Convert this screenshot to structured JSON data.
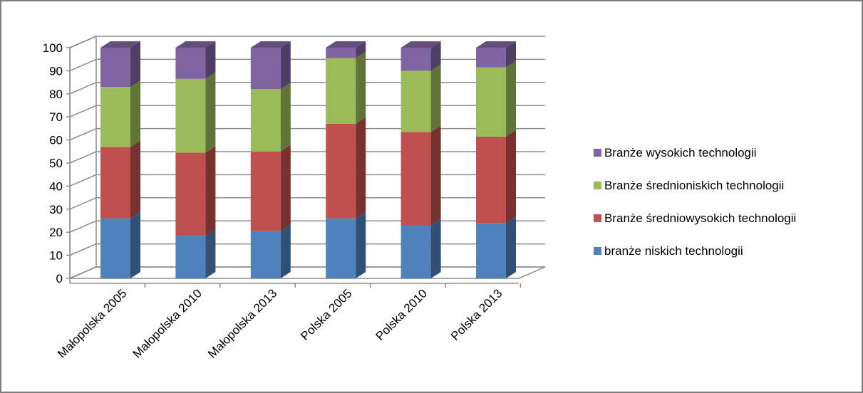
{
  "chart_data": {
    "type": "bar",
    "stacked": true,
    "three_d": true,
    "title": "",
    "xlabel": "",
    "ylabel": "",
    "ylim": [
      0,
      100
    ],
    "y_ticks": [
      0,
      10,
      20,
      30,
      40,
      50,
      60,
      70,
      80,
      90,
      100
    ],
    "grid": true,
    "legend_position": "right",
    "categories": [
      "Małopolska 2005",
      "Małopolska 2010",
      "Małopolska 2013",
      "Polska 2005",
      "Polska 2010",
      "Polska 2013"
    ],
    "series": [
      {
        "name": "branże niskich technologii",
        "color": "#4F81BD",
        "values": [
          26,
          18.5,
          20.5,
          26,
          23,
          24
        ]
      },
      {
        "name": "Branże średniowysokich technologii",
        "color": "#C0504D",
        "values": [
          31,
          36,
          34.5,
          41,
          40.5,
          37.5
        ]
      },
      {
        "name": "Branże średnioniskich technologii",
        "color": "#9BBB59",
        "values": [
          26,
          32,
          27,
          28.5,
          26.5,
          30
        ]
      },
      {
        "name": "Branże wysokich technologii",
        "color": "#8064A2",
        "values": [
          17,
          13.5,
          18,
          4.5,
          10,
          8.5
        ]
      }
    ]
  }
}
